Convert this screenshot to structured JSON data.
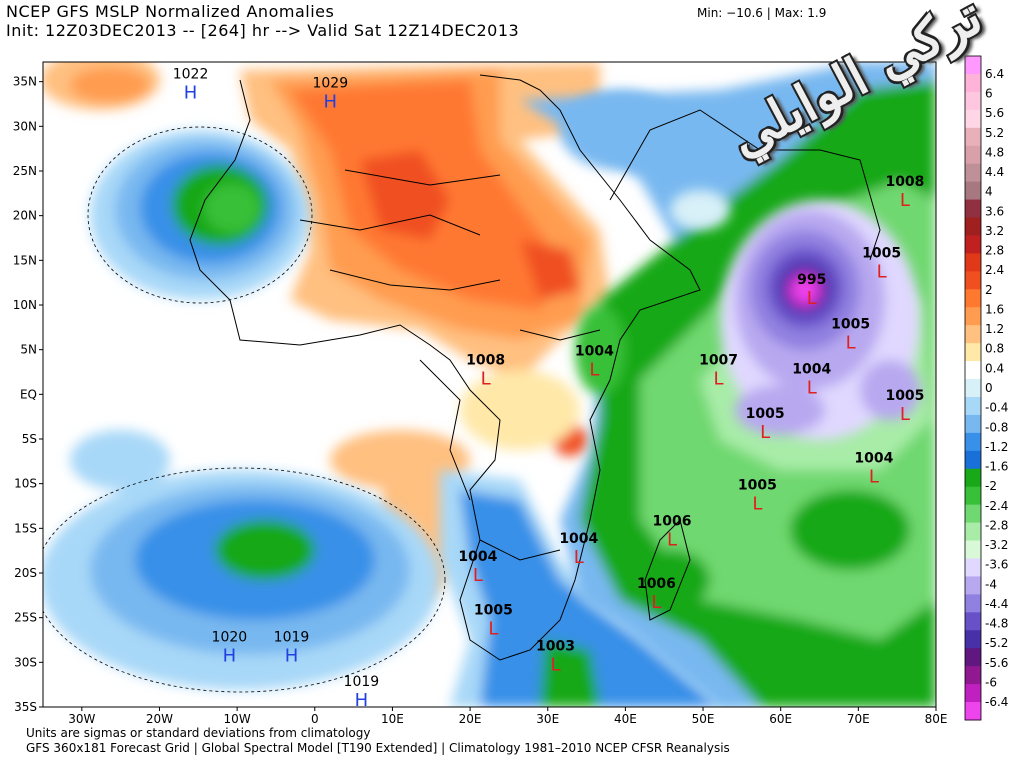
{
  "header": {
    "title": "NCEP GFS MSLP Normalized Anomalies",
    "init": "Init: 12Z03DEC2013 -- [264] hr --> Valid Sat 12Z14DEC2013",
    "minmax": "Min: −10.6 | Max:     1.9"
  },
  "footer": {
    "line1": "Units are sigmas or standard deviations from climatology",
    "line2": "GFS 360x181 Forecast Grid | Global Spectral Model [T190 Extended] | Climatology 1981–2010 NCEP CFSR Reanalysis"
  },
  "watermark": {
    "text": "تركي الوايلي"
  },
  "axes": {
    "lat_labels": [
      "35N",
      "30N",
      "25N",
      "20N",
      "15N",
      "10N",
      "5N",
      "EQ",
      "5S",
      "10S",
      "15S",
      "20S",
      "25S",
      "30S",
      "35S"
    ],
    "lon_labels": [
      "30W",
      "20W",
      "10W",
      "0",
      "10E",
      "20E",
      "30E",
      "40E",
      "50E",
      "60E",
      "70E",
      "80E"
    ]
  },
  "colorbar": {
    "labels": [
      "6.4",
      "6",
      "5.6",
      "5.2",
      "4.8",
      "4.4",
      "4",
      "3.6",
      "3.2",
      "2.8",
      "2.4",
      "2",
      "1.6",
      "1.2",
      "0.8",
      "0.4",
      "0",
      "-0.4",
      "-0.8",
      "-1.2",
      "-1.6",
      "-2",
      "-2.4",
      "-2.8",
      "-3.2",
      "-3.6",
      "-4",
      "-4.4",
      "-4.8",
      "-5.2",
      "-5.6",
      "-6",
      "-6.4"
    ],
    "colors": [
      "#ff99ff",
      "#ffb3d9",
      "#ffc6e0",
      "#ffd6e6",
      "#e8b0b8",
      "#d8a0a8",
      "#c09098",
      "#a87880",
      "#903040",
      "#a02020",
      "#c02020",
      "#e03818",
      "#f05020",
      "#ff7830",
      "#ff9c50",
      "#ffc080",
      "#ffe8a8",
      "#ffffff",
      "#d8f0f8",
      "#a8d8f8",
      "#78b8f0",
      "#3890e8",
      "#1870d8",
      "#18a818",
      "#38c038",
      "#70d870",
      "#a8eca8",
      "#d8f8d8",
      "#e0d8ff",
      "#b8a8f0",
      "#9080e0",
      "#6850c8",
      "#4830a8",
      "#601880",
      "#901890",
      "#c020c0",
      "#ee44ee"
    ]
  },
  "pressure_centers": [
    {
      "type": "H",
      "value": "1022",
      "lon": -16,
      "lat": 34
    },
    {
      "type": "H",
      "value": "1029",
      "lon": 2,
      "lat": 33
    },
    {
      "type": "H",
      "value": "1020",
      "lon": -11,
      "lat": -29
    },
    {
      "type": "H",
      "value": "1019",
      "lon": -3,
      "lat": -29
    },
    {
      "type": "H",
      "value": "1019",
      "lon": 6,
      "lat": -34
    },
    {
      "type": "L",
      "value": "1008",
      "lon": 76,
      "lat": 22
    },
    {
      "type": "L",
      "value": "1005",
      "lon": 73,
      "lat": 14
    },
    {
      "type": "L",
      "value": "995",
      "lon": 64,
      "lat": 11
    },
    {
      "type": "L",
      "value": "1005",
      "lon": 69,
      "lat": 6
    },
    {
      "type": "L",
      "value": "1004",
      "lon": 64,
      "lat": 1
    },
    {
      "type": "L",
      "value": "1005",
      "lon": 76,
      "lat": -2
    },
    {
      "type": "L",
      "value": "1007",
      "lon": 52,
      "lat": 2
    },
    {
      "type": "L",
      "value": "1005",
      "lon": 58,
      "lat": -4
    },
    {
      "type": "L",
      "value": "1004",
      "lon": 72,
      "lat": -9
    },
    {
      "type": "L",
      "value": "1005",
      "lon": 57,
      "lat": -12
    },
    {
      "type": "L",
      "value": "1006",
      "lon": 46,
      "lat": -16
    },
    {
      "type": "L",
      "value": "1006",
      "lon": 44,
      "lat": -23
    },
    {
      "type": "L",
      "value": "1004",
      "lon": 34,
      "lat": -18
    },
    {
      "type": "L",
      "value": "1004",
      "lon": 21,
      "lat": -20
    },
    {
      "type": "L",
      "value": "1005",
      "lon": 23,
      "lat": -26
    },
    {
      "type": "L",
      "value": "1003",
      "lon": 31,
      "lat": -30
    },
    {
      "type": "L",
      "value": "1008",
      "lon": 22,
      "lat": 2
    },
    {
      "type": "L",
      "value": "1004",
      "lon": 36,
      "lat": 3
    }
  ]
}
